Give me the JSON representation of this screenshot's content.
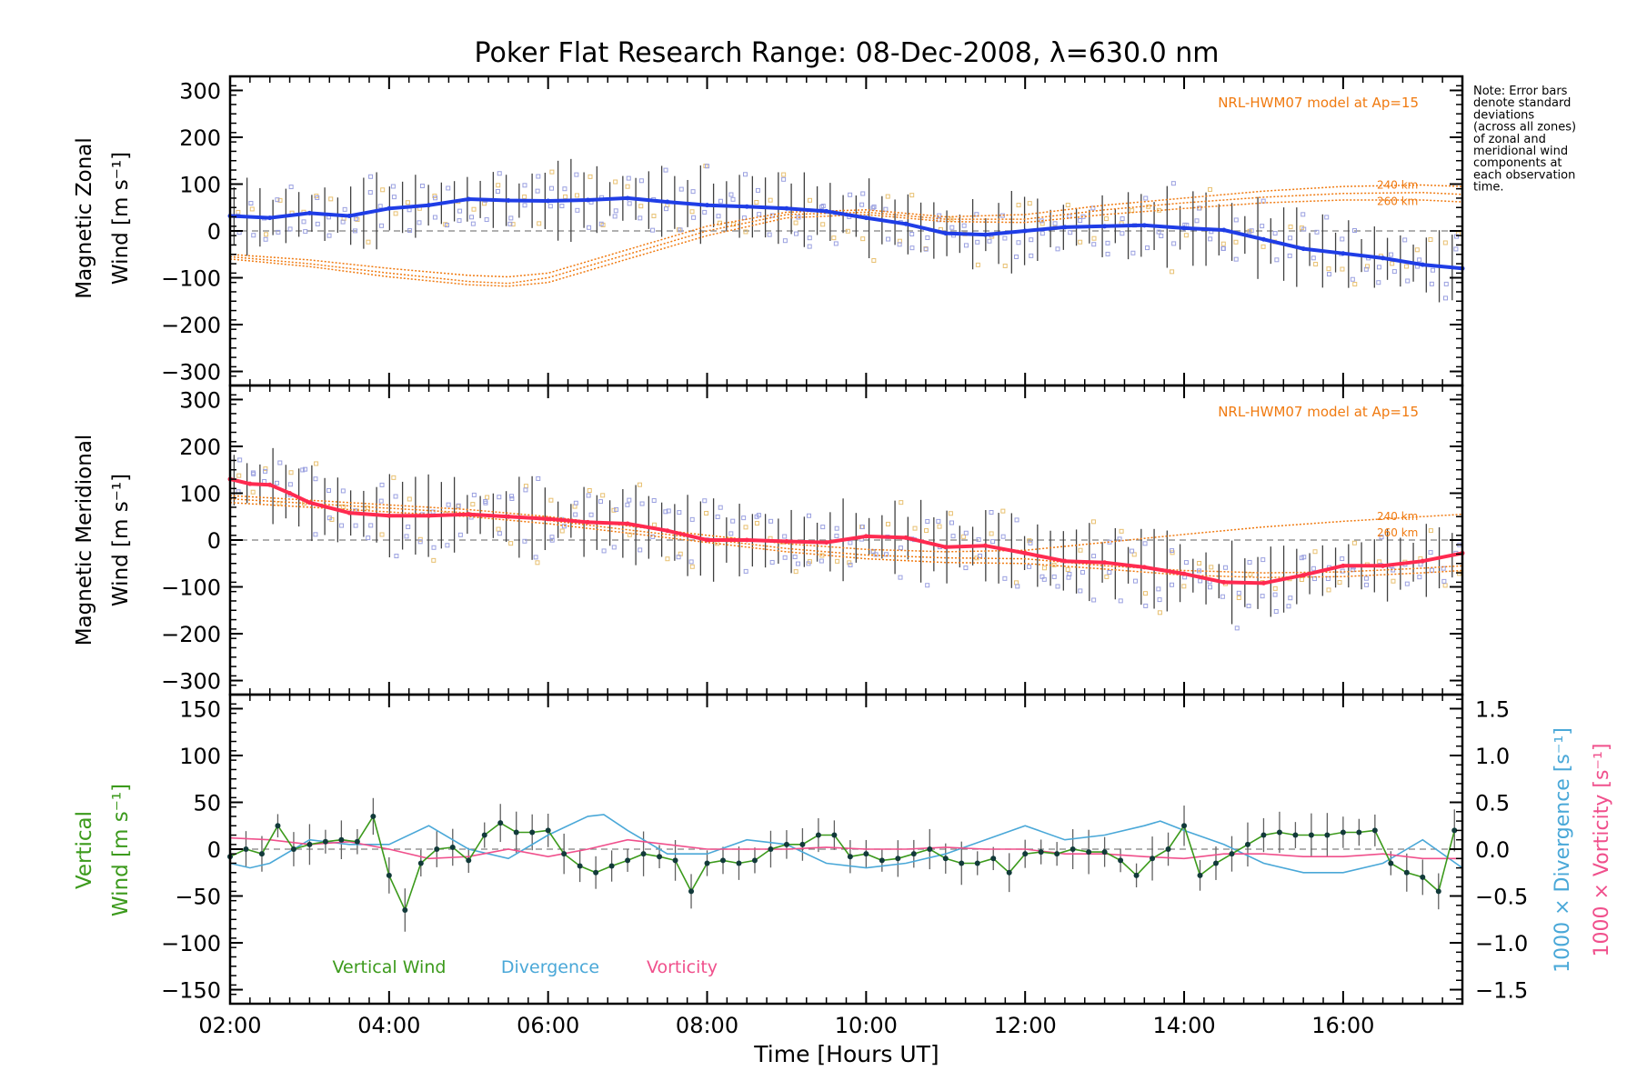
{
  "title": "Poker Flat Research Range: 08-Dec-2008, λ=630.0 nm",
  "note": [
    "Note: Error bars",
    "denote standard",
    "deviations",
    "(across all zones)",
    "of zonal and",
    "meridional wind",
    "components at",
    "each observation",
    "time."
  ],
  "colors": {
    "zonal": "#1f3de6",
    "meridional": "#ff2a50",
    "model": "#f07a10",
    "vertical": "#3c9a1c",
    "divergence": "#4aa8d8",
    "vorticity": "#f0508c",
    "zone_points_zonal": "#9aa0e0",
    "zone_points_merid": "#a0a0e0",
    "errbar": "#404040",
    "zero_line": "#808080"
  },
  "chart_data": [
    {
      "type": "line",
      "panel": "zonal",
      "ylabel": [
        "Magnetic Zonal",
        "Wind [m s⁻¹]"
      ],
      "ylim": [
        -330,
        330
      ],
      "yticks": [
        300,
        200,
        100,
        0,
        -100,
        -200,
        -300
      ],
      "ytick_labels": [
        "300",
        "200",
        "100",
        "0",
        "−100",
        "−200",
        "−300"
      ],
      "model_label": "NRL-HWM07 model at Ap=15",
      "model_alt_labels": [
        "240 km",
        "260 km"
      ],
      "series": [
        {
          "name": "Magnetic Zonal Wind",
          "x": [
            2.0,
            2.5,
            3.0,
            3.5,
            4.0,
            4.5,
            5.0,
            5.5,
            6.0,
            6.5,
            7.0,
            7.5,
            8.0,
            8.5,
            9.0,
            9.5,
            10.0,
            10.5,
            11.0,
            11.5,
            12.0,
            12.5,
            13.0,
            13.5,
            14.0,
            14.5,
            15.0,
            15.5,
            16.0,
            16.5,
            17.0,
            17.5
          ],
          "y": [
            32,
            28,
            38,
            32,
            48,
            55,
            68,
            65,
            64,
            66,
            70,
            62,
            55,
            52,
            48,
            42,
            28,
            15,
            -5,
            -8,
            0,
            8,
            10,
            12,
            6,
            2,
            -18,
            -38,
            -48,
            -58,
            -72,
            -80
          ]
        }
      ],
      "model_curves": [
        {
          "name": "model-1",
          "x": [
            2.0,
            3.0,
            4.0,
            5.0,
            5.5,
            6.0,
            7.0,
            8.0,
            9.0,
            10.0,
            11.0,
            12.0,
            13.0,
            14.0,
            15.0,
            16.0,
            17.0,
            17.5
          ],
          "y": [
            -50,
            -62,
            -80,
            -95,
            -98,
            -90,
            -40,
            10,
            40,
            45,
            30,
            35,
            55,
            70,
            85,
            95,
            98,
            95
          ]
        },
        {
          "name": "model-2",
          "x": [
            2.0,
            3.0,
            4.0,
            5.0,
            5.5,
            6.0,
            7.0,
            8.0,
            9.0,
            10.0,
            11.0,
            12.0,
            13.0,
            14.0,
            15.0,
            16.0,
            17.0,
            17.5
          ],
          "y": [
            -55,
            -70,
            -90,
            -108,
            -112,
            -100,
            -50,
            0,
            35,
            40,
            25,
            25,
            45,
            60,
            72,
            80,
            82,
            78
          ]
        },
        {
          "name": "model-3",
          "x": [
            2.0,
            3.0,
            4.0,
            5.0,
            5.5,
            6.0,
            7.0,
            8.0,
            9.0,
            10.0,
            11.0,
            12.0,
            13.0,
            14.0,
            15.0,
            16.0,
            17.0,
            17.5
          ],
          "y": [
            -60,
            -76,
            -98,
            -115,
            -118,
            -110,
            -60,
            -10,
            28,
            35,
            20,
            18,
            35,
            48,
            60,
            66,
            66,
            62
          ]
        }
      ]
    },
    {
      "type": "line",
      "panel": "meridional",
      "ylabel": [
        "Magnetic Meridional",
        "Wind [m s⁻¹]"
      ],
      "ylim": [
        -330,
        330
      ],
      "yticks": [
        300,
        200,
        100,
        0,
        -100,
        -200,
        -300
      ],
      "ytick_labels": [
        "300",
        "200",
        "100",
        "0",
        "−100",
        "−200",
        "−300"
      ],
      "model_label": "NRL-HWM07 model at Ap=15",
      "model_alt_labels": [
        "240 km",
        "260 km"
      ],
      "series": [
        {
          "name": "Magnetic Meridional Wind",
          "x": [
            2.0,
            2.25,
            2.5,
            2.75,
            3.0,
            3.5,
            4.0,
            4.5,
            5.0,
            5.5,
            6.0,
            6.5,
            7.0,
            7.5,
            8.0,
            8.5,
            9.0,
            9.5,
            10.0,
            10.5,
            11.0,
            11.5,
            12.0,
            12.5,
            13.0,
            13.5,
            14.0,
            14.5,
            15.0,
            15.5,
            16.0,
            16.5,
            17.0,
            17.5
          ],
          "y": [
            130,
            120,
            118,
            100,
            80,
            58,
            52,
            52,
            55,
            50,
            45,
            38,
            35,
            20,
            0,
            0,
            -3,
            -5,
            8,
            5,
            -15,
            -12,
            -28,
            -45,
            -48,
            -58,
            -72,
            -90,
            -92,
            -75,
            -55,
            -55,
            -45,
            -28
          ]
        }
      ],
      "model_curves": [
        {
          "name": "model-1",
          "x": [
            2.0,
            3.0,
            4.0,
            5.0,
            6.0,
            7.0,
            8.0,
            9.0,
            10.0,
            11.0,
            12.0,
            13.0,
            14.0,
            15.0,
            16.0,
            17.0,
            17.5
          ],
          "y": [
            95,
            85,
            75,
            65,
            50,
            30,
            10,
            -8,
            -20,
            -25,
            -22,
            -5,
            12,
            28,
            40,
            50,
            55
          ]
        },
        {
          "name": "model-2",
          "x": [
            2.0,
            3.0,
            4.0,
            5.0,
            6.0,
            7.0,
            8.0,
            9.0,
            10.0,
            11.0,
            12.0,
            13.0,
            14.0,
            15.0,
            16.0,
            17.0,
            17.5
          ],
          "y": [
            88,
            78,
            68,
            58,
            42,
            22,
            2,
            -18,
            -32,
            -38,
            -40,
            -55,
            -65,
            -70,
            -68,
            -60,
            -55
          ]
        },
        {
          "name": "model-3",
          "x": [
            2.0,
            3.0,
            4.0,
            5.0,
            6.0,
            7.0,
            8.0,
            9.0,
            10.0,
            11.0,
            12.0,
            13.0,
            14.0,
            15.0,
            16.0,
            17.0,
            17.5
          ],
          "y": [
            80,
            70,
            60,
            50,
            35,
            15,
            -5,
            -25,
            -40,
            -48,
            -50,
            -62,
            -75,
            -80,
            -78,
            -70,
            -65
          ]
        }
      ]
    },
    {
      "type": "line",
      "panel": "vertical",
      "ylabel_left": [
        "Vertical",
        "Wind [m s⁻¹]"
      ],
      "ylim": [
        -165,
        165
      ],
      "yticks": [
        150,
        100,
        50,
        0,
        -50,
        -100,
        -150
      ],
      "ytick_labels": [
        "150",
        "100",
        "50",
        "0",
        "−50",
        "−100",
        "−150"
      ],
      "ylabel_right_1": "1000 × Divergence [s⁻¹]",
      "ylabel_right_2": "1000 × Vorticity [s⁻¹]",
      "ylim_right": [
        -1.65,
        1.65
      ],
      "yticks_right": [
        1.5,
        1.0,
        0.5,
        0.0,
        -0.5,
        -1.0,
        -1.5
      ],
      "ytick_labels_right": [
        "1.5",
        "1.0",
        "0.5",
        "0.0",
        "−0.5",
        "−1.0",
        "−1.5"
      ],
      "legend": [
        "Vertical Wind",
        "Divergence",
        "Vorticity"
      ],
      "series": [
        {
          "name": "Vertical Wind",
          "x": [
            2.0,
            2.2,
            2.4,
            2.6,
            2.8,
            3.0,
            3.2,
            3.4,
            3.6,
            3.8,
            4.0,
            4.2,
            4.4,
            4.6,
            4.8,
            5.0,
            5.2,
            5.4,
            5.6,
            5.8,
            6.0,
            6.2,
            6.4,
            6.6,
            6.8,
            7.0,
            7.2,
            7.4,
            7.6,
            7.8,
            8.0,
            8.2,
            8.4,
            8.6,
            8.8,
            9.0,
            9.2,
            9.4,
            9.6,
            9.8,
            10.0,
            10.2,
            10.4,
            10.6,
            10.8,
            11.0,
            11.2,
            11.4,
            11.6,
            11.8,
            12.0,
            12.2,
            12.4,
            12.6,
            12.8,
            13.0,
            13.2,
            13.4,
            13.6,
            13.8,
            14.0,
            14.2,
            14.4,
            14.6,
            14.8,
            15.0,
            15.2,
            15.4,
            15.6,
            15.8,
            16.0,
            16.2,
            16.4,
            16.6,
            16.8,
            17.0,
            17.2,
            17.4
          ],
          "y": [
            -8,
            0,
            -5,
            25,
            0,
            5,
            8,
            10,
            8,
            35,
            -28,
            -65,
            -15,
            0,
            2,
            -12,
            15,
            28,
            18,
            18,
            20,
            -5,
            -18,
            -25,
            -18,
            -12,
            -5,
            -8,
            -12,
            -45,
            -15,
            -12,
            -15,
            -12,
            0,
            5,
            5,
            15,
            15,
            -8,
            -5,
            -12,
            -10,
            -5,
            0,
            -10,
            -15,
            -15,
            -10,
            -25,
            -5,
            -3,
            -5,
            0,
            -3,
            -3,
            -12,
            -28,
            -10,
            0,
            25,
            -28,
            -15,
            -5,
            5,
            15,
            18,
            15,
            15,
            15,
            18,
            18,
            20,
            -15,
            -25,
            -30,
            -45,
            20
          ]
        },
        {
          "name": "Divergence",
          "axis": "right",
          "x": [
            2.0,
            2.25,
            2.5,
            3.0,
            3.5,
            4.0,
            4.5,
            5.0,
            5.5,
            6.0,
            6.5,
            6.7,
            7.0,
            7.5,
            8.0,
            8.5,
            9.0,
            9.5,
            10.0,
            10.5,
            11.0,
            11.5,
            12.0,
            12.5,
            13.0,
            13.5,
            13.7,
            14.0,
            14.5,
            15.0,
            15.5,
            16.0,
            16.5,
            17.0,
            17.5
          ],
          "y": [
            -0.15,
            -0.2,
            -0.15,
            0.1,
            0.05,
            0.05,
            0.25,
            0.0,
            -0.1,
            0.15,
            0.35,
            0.37,
            0.2,
            -0.05,
            -0.05,
            0.1,
            0.05,
            -0.15,
            -0.2,
            -0.15,
            -0.05,
            0.1,
            0.25,
            0.1,
            0.15,
            0.25,
            0.3,
            0.2,
            0.05,
            -0.15,
            -0.25,
            -0.25,
            -0.15,
            0.1,
            -0.2
          ]
        },
        {
          "name": "Vorticity",
          "axis": "right",
          "x": [
            2.0,
            2.5,
            3.0,
            3.5,
            4.0,
            4.5,
            5.0,
            5.5,
            6.0,
            6.5,
            7.0,
            7.5,
            8.0,
            8.5,
            9.0,
            9.5,
            10.0,
            10.5,
            11.0,
            11.5,
            12.0,
            12.5,
            13.0,
            13.5,
            14.0,
            14.5,
            15.0,
            15.5,
            16.0,
            16.5,
            17.0,
            17.5
          ],
          "y": [
            0.12,
            0.1,
            0.05,
            0.08,
            0.0,
            -0.1,
            -0.08,
            0.0,
            -0.08,
            0.0,
            0.1,
            0.05,
            0.0,
            0.0,
            0.0,
            0.02,
            0.0,
            0.0,
            0.02,
            0.0,
            0.0,
            -0.05,
            -0.05,
            -0.08,
            -0.1,
            -0.05,
            -0.05,
            -0.08,
            -0.08,
            -0.05,
            -0.1,
            -0.1
          ]
        }
      ]
    }
  ],
  "x_axis": {
    "label": "Time [Hours UT]",
    "xlim": [
      2.0,
      17.5
    ],
    "ticks": [
      2,
      4,
      6,
      8,
      10,
      12,
      14,
      16
    ],
    "tick_labels": [
      "02:00",
      "04:00",
      "06:00",
      "08:00",
      "10:00",
      "12:00",
      "14:00",
      "16:00"
    ]
  }
}
